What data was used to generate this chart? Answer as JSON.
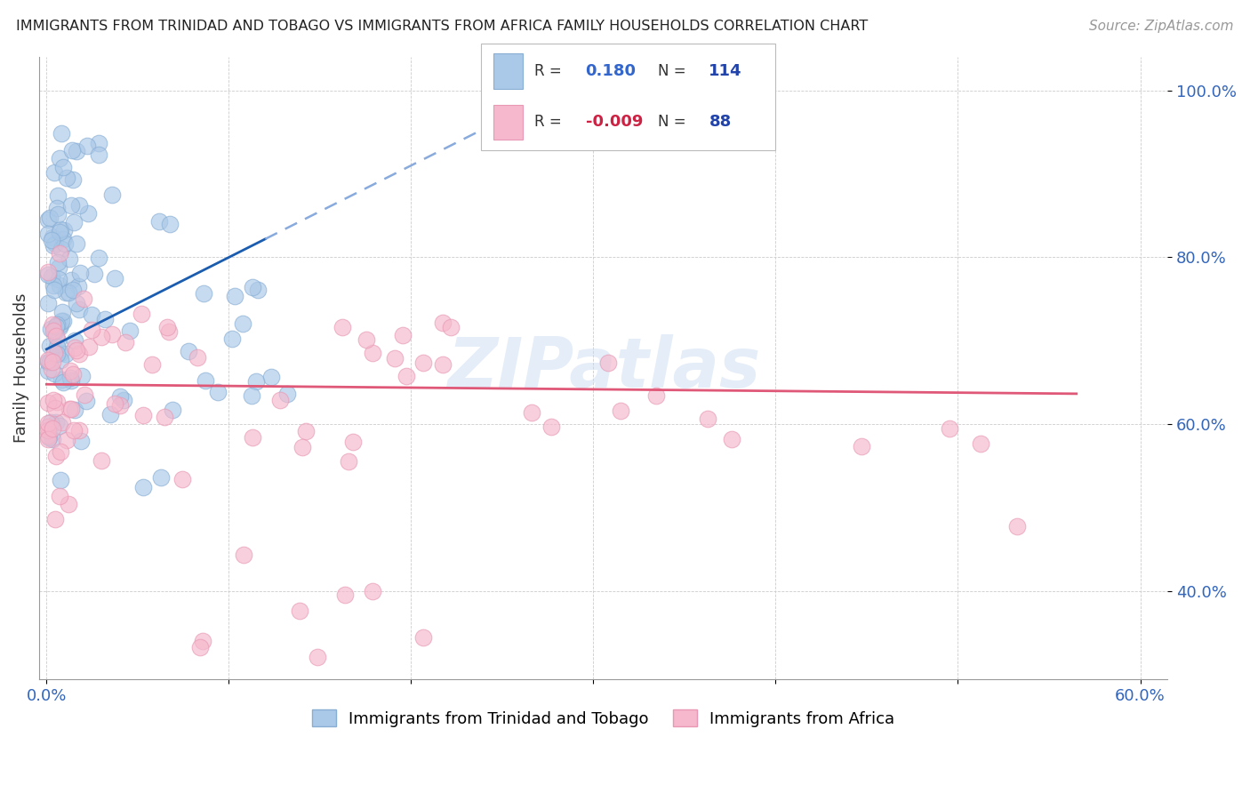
{
  "title": "IMMIGRANTS FROM TRINIDAD AND TOBAGO VS IMMIGRANTS FROM AFRICA FAMILY HOUSEHOLDS CORRELATION CHART",
  "source": "Source: ZipAtlas.com",
  "ylabel": "Family Households",
  "series1_label": "Immigrants from Trinidad and Tobago",
  "series2_label": "Immigrants from Africa",
  "series1_color": "#aac8e8",
  "series2_color": "#f5b8cc",
  "series1_edge": "#88aed4",
  "series2_edge": "#e898b4",
  "trend1_color": "#1a5cb0",
  "trend2_color": "#e05878",
  "dashed_color": "#88aadd",
  "r1": 0.18,
  "n1": 114,
  "r2": -0.009,
  "n2": 88,
  "watermark": "ZIPatlas",
  "legend_r1_color": "#3366cc",
  "legend_r2_color": "#cc2244",
  "legend_n_color": "#2244aa"
}
